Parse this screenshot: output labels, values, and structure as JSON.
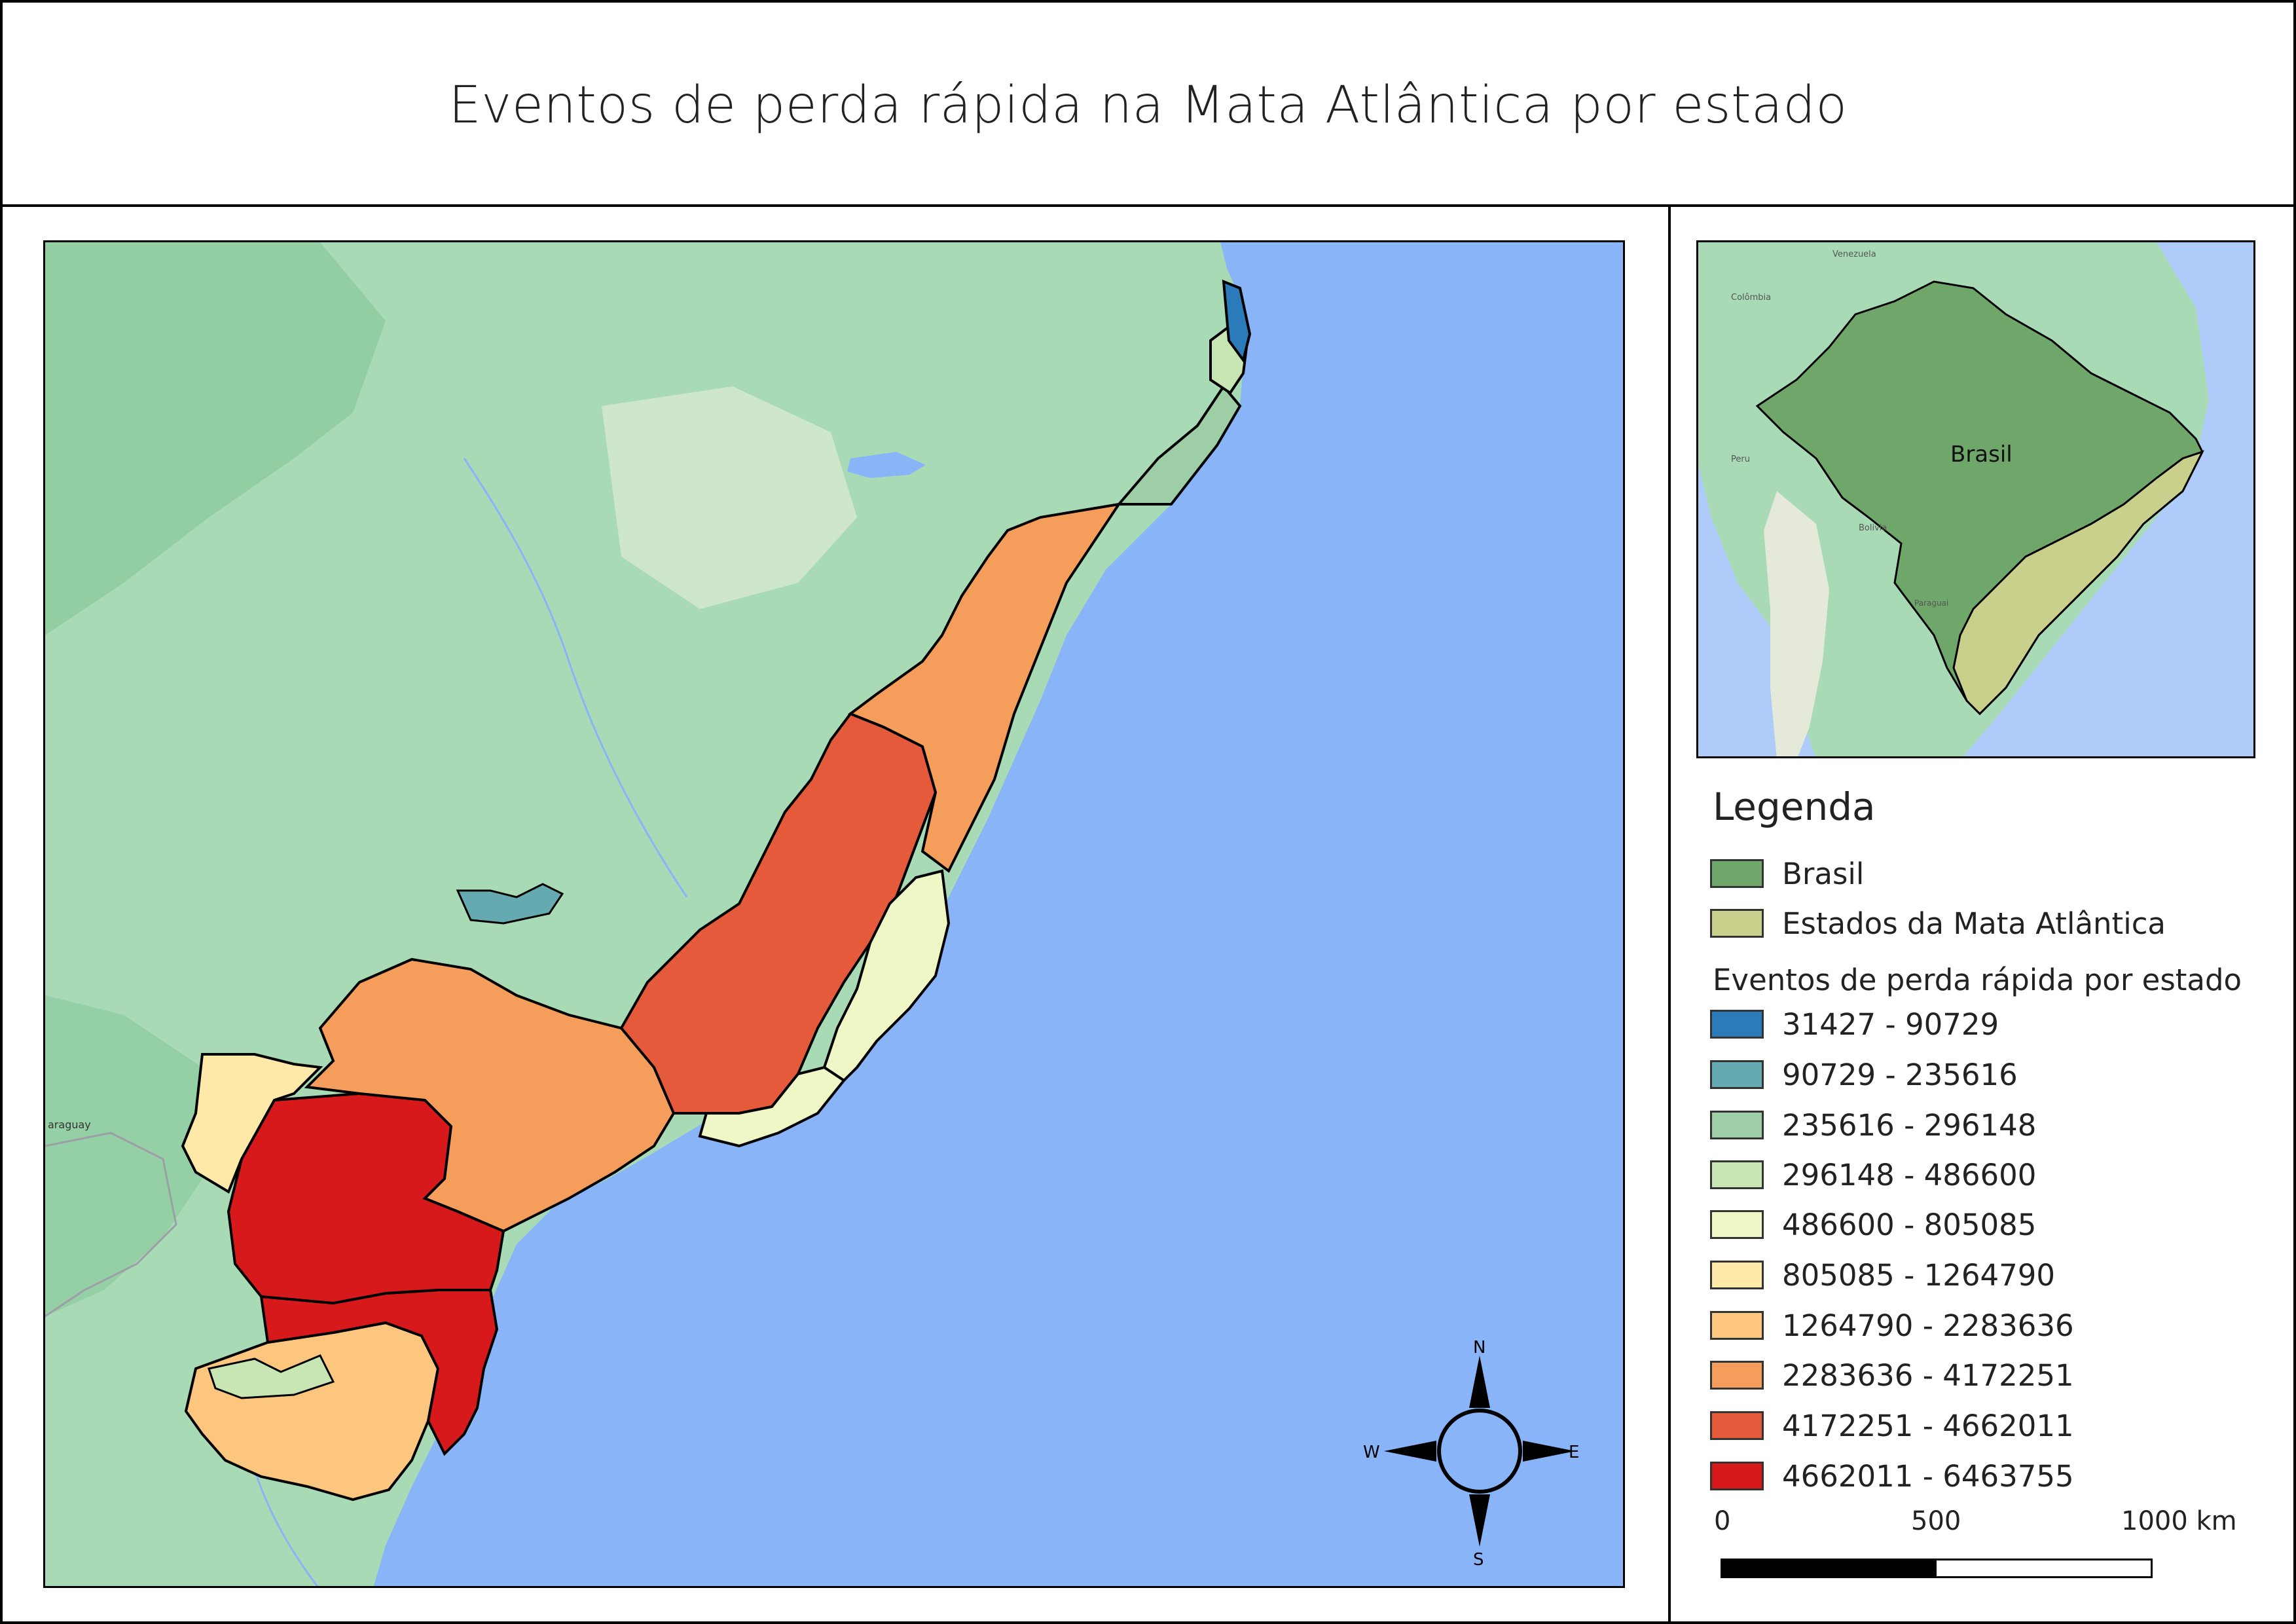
{
  "title": "Eventos de perda rápida na Mata Atlântica por estado",
  "basemap_labels": {
    "paraguay": "araguay",
    "inset_venezuela": "Venezuela",
    "inset_colombia": "Colômbia",
    "inset_peru": "Peru",
    "inset_bolivia": "Bolivia",
    "inset_paraguai": "Paraguai",
    "inset_brasil": "Brasil"
  },
  "compass": {
    "n": "N",
    "s": "S",
    "e": "E",
    "w": "W"
  },
  "legend": {
    "title": "Legenda",
    "layers": [
      {
        "label": "Brasil",
        "color": "#6fa66a"
      },
      {
        "label": "Estados da Mata Atlântica",
        "color": "#c8d08c"
      }
    ],
    "classes_title": "Eventos de perda rápida por estado",
    "classes": [
      {
        "label": "31427 - 90729",
        "color": "#2b7bba"
      },
      {
        "label": "90729 - 235616",
        "color": "#64aab0"
      },
      {
        "label": "235616 - 296148",
        "color": "#9dcea6"
      },
      {
        "label": "296148 - 486600",
        "color": "#c8e6b4"
      },
      {
        "label": "486600 - 805085",
        "color": "#eff7c6"
      },
      {
        "label": "805085 - 1264790",
        "color": "#fee9a8"
      },
      {
        "label": "1264790 - 2283636",
        "color": "#fdc67f"
      },
      {
        "label": "2283636 - 4172251",
        "color": "#f59d5b"
      },
      {
        "label": "4172251 - 4662011",
        "color": "#e55a3b"
      },
      {
        "label": "4662011 - 6463755",
        "color": "#d7191c"
      }
    ]
  },
  "scale_bar": {
    "label_0": "0",
    "label_mid": "500",
    "label_end": "1000 km"
  }
}
